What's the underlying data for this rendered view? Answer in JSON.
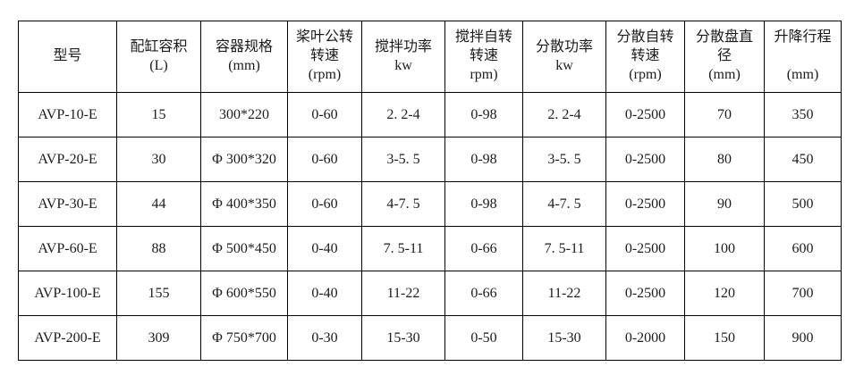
{
  "table": {
    "columns": [
      {
        "label": "型号"
      },
      {
        "label": "配缸容积\n(L)"
      },
      {
        "label": "容器规格\n(mm)"
      },
      {
        "label": "桨叶公转\n转速\n(rpm)"
      },
      {
        "label": "搅拌功率\nkw"
      },
      {
        "label": "搅拌自转\n转速\nrpm)"
      },
      {
        "label": "分散功率\nkw"
      },
      {
        "label": "分散自转\n转速\n(rpm)"
      },
      {
        "label": "分散盘直\n径\n(mm)"
      },
      {
        "label": "升降行程\n\n(mm)"
      }
    ],
    "rows": [
      [
        "AVP-10-E",
        "15",
        "300*220",
        "0-60",
        "2. 2-4",
        "0-98",
        "2. 2-4",
        "0-2500",
        "70",
        "350"
      ],
      [
        "AVP-20-E",
        "30",
        "Φ 300*320",
        "0-60",
        "3-5. 5",
        "0-98",
        "3-5. 5",
        "0-2500",
        "80",
        "450"
      ],
      [
        "AVP-30-E",
        "44",
        "Φ 400*350",
        "0-60",
        "4-7. 5",
        "0-98",
        "4-7. 5",
        "0-2500",
        "90",
        "500"
      ],
      [
        "AVP-60-E",
        "88",
        "Φ 500*450",
        "0-40",
        "7. 5-11",
        "0-66",
        "7. 5-11",
        "0-2500",
        "100",
        "600"
      ],
      [
        "AVP-100-E",
        "155",
        "Φ 600*550",
        "0-40",
        "11-22",
        "0-66",
        "11-22",
        "0-2500",
        "120",
        "700"
      ],
      [
        "AVP-200-E",
        "309",
        "Φ 750*700",
        "0-30",
        "15-30",
        "0-50",
        "15-30",
        "0-2000",
        "150",
        "900"
      ]
    ],
    "style": {
      "border_color": "#000000",
      "text_color": "#1c1c1c",
      "background": "#ffffff"
    }
  }
}
